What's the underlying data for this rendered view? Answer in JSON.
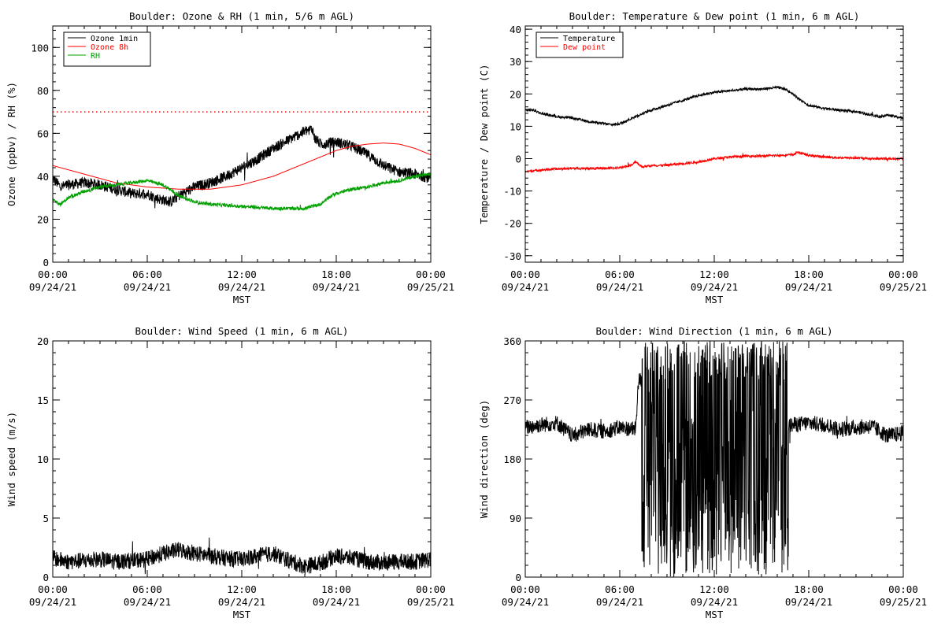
{
  "chart_data": [
    {
      "type": "line",
      "title": "Boulder: Ozone & RH (1 min, 5/6 m AGL)",
      "xlabel": "MST",
      "ylabel": "Ozone (ppbv) / RH (%)",
      "ylim": [
        0,
        110
      ],
      "yticks": [
        0,
        20,
        40,
        60,
        80,
        100
      ],
      "xticks": [
        {
          "time": "00:00",
          "date": "09/24/21"
        },
        {
          "time": "06:00",
          "date": "09/24/21"
        },
        {
          "time": "12:00",
          "date": "09/24/21"
        },
        {
          "time": "18:00",
          "date": "09/24/21"
        },
        {
          "time": "00:00",
          "date": "09/25/21"
        }
      ],
      "legend_position": "top-left",
      "reference_line": {
        "y": 70,
        "color": "#ff0000",
        "style": "dotted"
      },
      "series": [
        {
          "name": "Ozone 1min",
          "color": "#000000",
          "noise": 2.5,
          "x": [
            0,
            0.5,
            1,
            2,
            3,
            4,
            5,
            6,
            6.5,
            7,
            7.5,
            8,
            8.5,
            9,
            10,
            11,
            12,
            13,
            14,
            15,
            16,
            16.5,
            16.6,
            17,
            18,
            19,
            20,
            21,
            22,
            23,
            23.5,
            24
          ],
          "y": [
            39,
            35,
            36,
            37,
            36,
            34,
            32,
            32,
            30,
            29,
            28,
            31,
            33,
            35,
            37,
            40,
            44,
            48,
            53,
            57,
            61,
            62,
            58,
            55,
            56,
            54,
            50,
            45,
            42,
            41,
            40,
            39
          ]
        },
        {
          "name": "Ozone 8h",
          "color": "#ff0000",
          "noise": 0,
          "x": [
            0,
            2,
            4,
            6,
            8,
            10,
            12,
            14,
            16,
            18,
            19,
            20,
            21,
            22,
            23,
            24
          ],
          "y": [
            45,
            41,
            37,
            35,
            34,
            34,
            36,
            40,
            46,
            52,
            54,
            55,
            55.5,
            55,
            53,
            50
          ]
        },
        {
          "name": "RH",
          "color": "#00a000",
          "noise": 0.8,
          "x": [
            0,
            0.5,
            1,
            2,
            3,
            4,
            5,
            6,
            7,
            8,
            9,
            10,
            12,
            14,
            15,
            16,
            17,
            17.5,
            18,
            19,
            20,
            21,
            22,
            23,
            24
          ],
          "y": [
            29,
            27,
            30,
            33,
            35,
            36,
            37,
            38,
            36,
            31,
            28,
            27,
            26,
            25,
            25,
            25,
            27,
            30,
            32,
            34,
            35,
            37,
            38,
            40,
            41
          ]
        }
      ]
    },
    {
      "type": "line",
      "title": "Boulder: Temperature & Dew point (1 min, 6 m AGL)",
      "xlabel": "MST",
      "ylabel": "Temperature / Dew point (C)",
      "ylim": [
        -32,
        41
      ],
      "yticks": [
        -30,
        -20,
        -10,
        0,
        10,
        20,
        30,
        40
      ],
      "xticks": [
        {
          "time": "00:00",
          "date": "09/24/21"
        },
        {
          "time": "06:00",
          "date": "09/24/21"
        },
        {
          "time": "12:00",
          "date": "09/24/21"
        },
        {
          "time": "18:00",
          "date": "09/24/21"
        },
        {
          "time": "00:00",
          "date": "09/25/21"
        }
      ],
      "legend_position": "top-left",
      "series": [
        {
          "name": "Temperature",
          "color": "#000000",
          "noise": 0.4,
          "x": [
            0,
            0.5,
            1,
            2,
            3,
            4,
            5,
            5.5,
            6,
            7,
            8,
            9,
            10,
            11,
            12,
            13,
            14,
            15,
            16,
            16.5,
            17,
            17.5,
            18,
            19,
            20,
            21,
            22,
            22.5,
            23,
            24
          ],
          "y": [
            15,
            15,
            14,
            13,
            12.5,
            11.5,
            10.8,
            10.5,
            10.8,
            13,
            15,
            16.5,
            18,
            19.5,
            20.5,
            21,
            21.5,
            21.5,
            22,
            21.5,
            20,
            18,
            16.5,
            15.5,
            15,
            14.5,
            13.5,
            13,
            13.5,
            12.5
          ]
        },
        {
          "name": "Dew point",
          "color": "#ff0000",
          "noise": 0.35,
          "x": [
            0,
            1,
            2,
            3,
            4,
            5,
            6,
            6.8,
            7,
            7.4,
            8,
            9,
            10,
            11,
            12,
            13,
            14,
            15,
            16,
            17,
            17.3,
            18,
            19,
            20,
            21,
            22,
            23,
            24
          ],
          "y": [
            -4,
            -3.5,
            -3.2,
            -3,
            -3,
            -3,
            -2.8,
            -2,
            -0.8,
            -2.5,
            -2.2,
            -2,
            -1.5,
            -1,
            0,
            0.5,
            0.8,
            0.8,
            1,
            1.2,
            2,
            1,
            0.5,
            0.3,
            0.2,
            0,
            0,
            0
          ]
        }
      ]
    },
    {
      "type": "line",
      "title": "Boulder: Wind Speed (1 min, 6 m AGL)",
      "xlabel": "MST",
      "ylabel": "Wind speed (m/s)",
      "ylim": [
        0,
        20
      ],
      "yticks": [
        0,
        5,
        10,
        15,
        20
      ],
      "xticks": [
        {
          "time": "00:00",
          "date": "09/24/21"
        },
        {
          "time": "06:00",
          "date": "09/24/21"
        },
        {
          "time": "12:00",
          "date": "09/24/21"
        },
        {
          "time": "18:00",
          "date": "09/24/21"
        },
        {
          "time": "00:00",
          "date": "09/25/21"
        }
      ],
      "series": [
        {
          "name": "",
          "color": "#000000",
          "noise": 0.7,
          "x": [
            0,
            1,
            2,
            3,
            4,
            5,
            6,
            7,
            8,
            9,
            10,
            11,
            12,
            13,
            14,
            15,
            16,
            17,
            18,
            19,
            20,
            21,
            22,
            23,
            24
          ],
          "y": [
            1.6,
            1.3,
            1.4,
            1.5,
            1.3,
            1.4,
            1.5,
            2,
            2.3,
            2,
            1.8,
            1.6,
            1.5,
            1.8,
            2,
            1.4,
            0.9,
            1.2,
            1.8,
            1.6,
            1.3,
            1.2,
            1.3,
            1.3,
            1.5
          ]
        }
      ]
    },
    {
      "type": "line",
      "title": "Boulder: Wind Direction (1 min, 6 m AGL)",
      "xlabel": "MST",
      "ylabel": "Wind direction (deg)",
      "ylim": [
        0,
        360
      ],
      "yticks": [
        0,
        90,
        180,
        270,
        360
      ],
      "xticks": [
        {
          "time": "00:00",
          "date": "09/24/21"
        },
        {
          "time": "06:00",
          "date": "09/24/21"
        },
        {
          "time": "12:00",
          "date": "09/24/21"
        },
        {
          "time": "18:00",
          "date": "09/24/21"
        },
        {
          "time": "00:00",
          "date": "09/25/21"
        }
      ],
      "series": [
        {
          "name": "",
          "color": "#000000",
          "noise": 12,
          "x": [
            0,
            1,
            2,
            3,
            4,
            5,
            6,
            7,
            7.2,
            8,
            8.5,
            17,
            18,
            19,
            20,
            21,
            22,
            23,
            24
          ],
          "y": [
            228,
            232,
            235,
            215,
            225,
            222,
            228,
            225,
            300,
            305,
            200,
            232,
            235,
            232,
            225,
            228,
            230,
            215,
            220
          ],
          "chaotic_range": [
            7.4,
            16.7
          ]
        }
      ]
    }
  ]
}
